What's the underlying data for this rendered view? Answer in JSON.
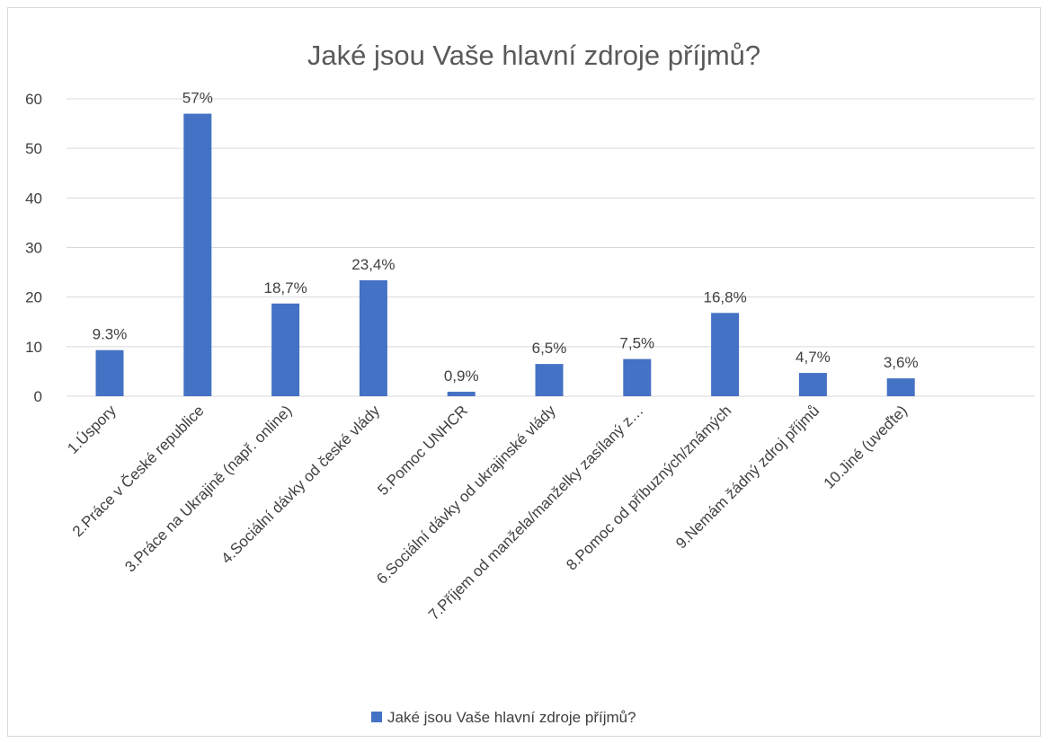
{
  "chart_data": {
    "type": "bar",
    "title": "Jaké jsou Vaše hlavní zdroje příjmů?",
    "categories": [
      "1.Úspory",
      "2.Práce v České republice",
      "3.Práce na Ukrajině (např. online)",
      "4.Sociální dávky od české vlády",
      "5.Pomoc UNHCR",
      "6.Sociální dávky od ukrajinské vlády",
      "7.Příjem od manžela/manželky zasílaný z…",
      "8.Pomoc od příbuzných/známých",
      "9.Nemám žádný zdroj příjmů",
      "10.Jiné (uveďte)"
    ],
    "series": [
      {
        "name": "Jaké jsou Vaše hlavní zdroje příjmů?",
        "values": [
          9.3,
          57,
          18.7,
          23.4,
          0.9,
          6.5,
          7.5,
          16.8,
          4.7,
          3.6
        ],
        "data_labels": [
          "9.3%",
          "57%",
          "18,7%",
          "23,4%",
          "0,9%",
          "6,5%",
          "7,5%",
          "16,8%",
          "4,7%",
          "3,6%"
        ]
      }
    ],
    "yticks": [
      "0",
      "10",
      "20",
      "30",
      "40",
      "50",
      "60"
    ],
    "ylim": [
      0,
      60
    ],
    "grid": true,
    "legend": "bottom",
    "colors": {
      "bar": "#4472c4",
      "grid": "#d9d9d9",
      "text": "#404040",
      "title": "#595959"
    }
  }
}
